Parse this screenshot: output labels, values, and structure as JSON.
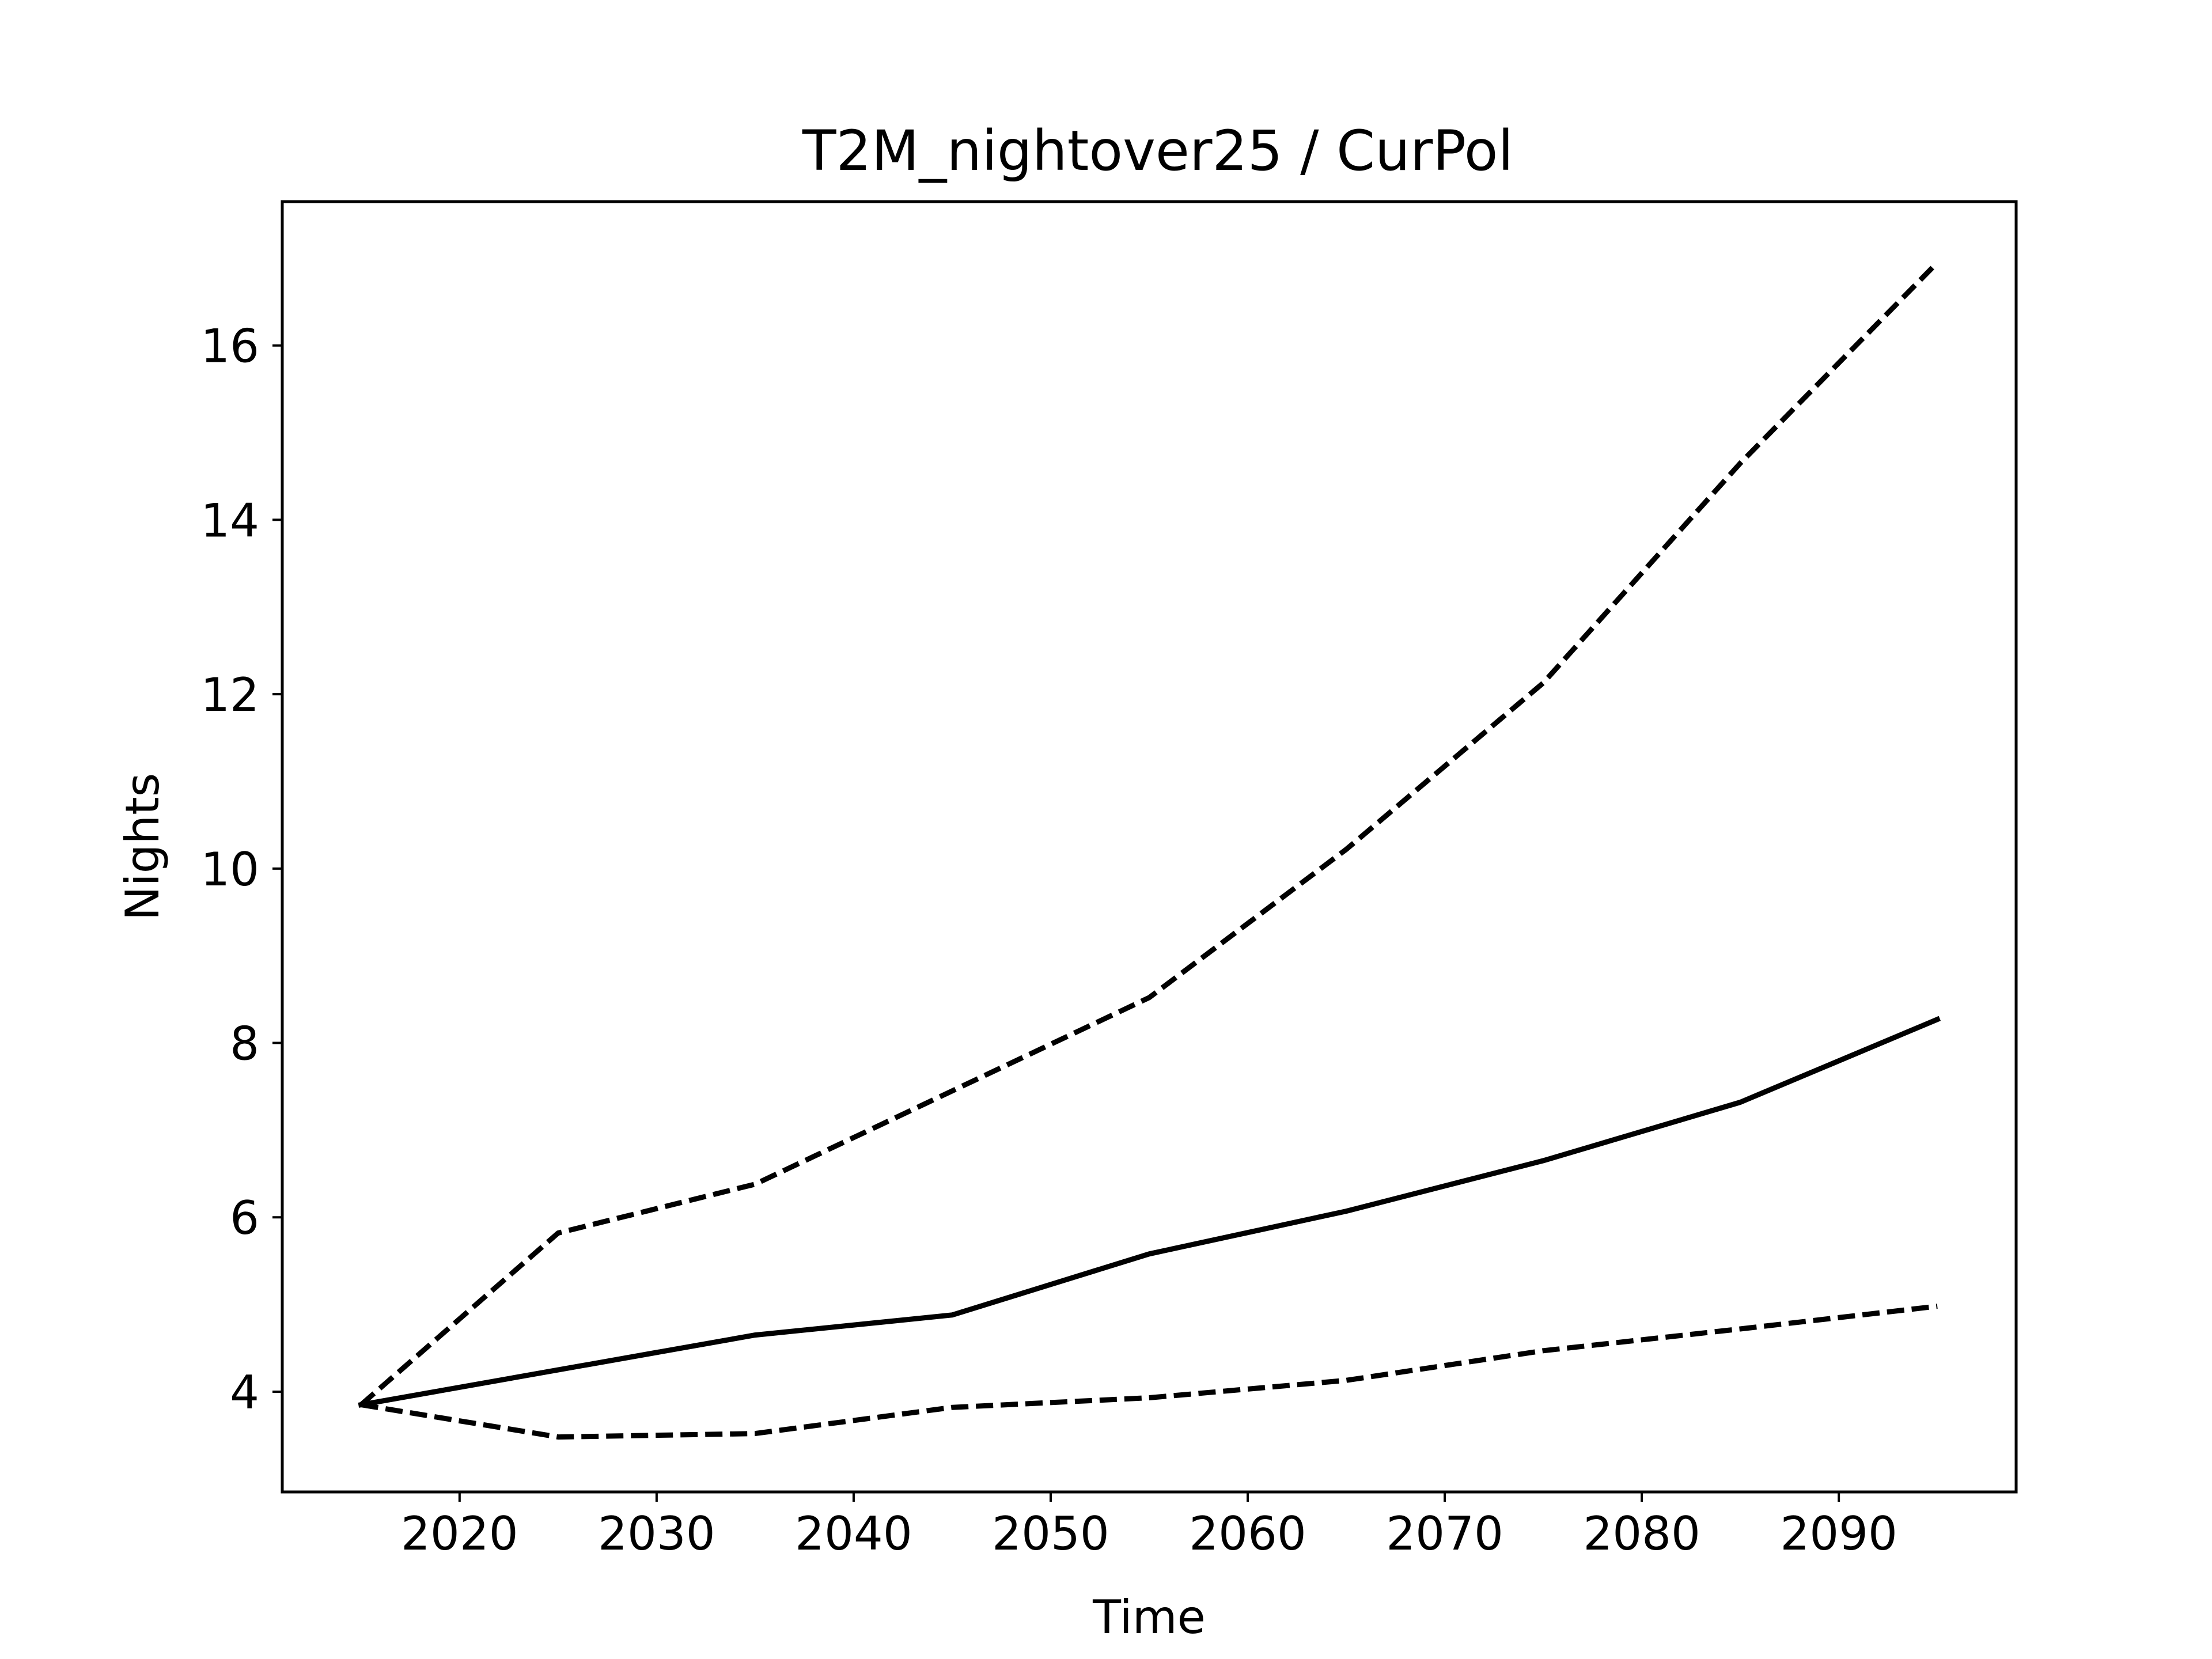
{
  "chart_data": {
    "type": "line",
    "title": "T2M_nightover25 / CurPol",
    "xlabel": "Time",
    "ylabel": "Nights",
    "xlim": [
      2011.0,
      2099.0
    ],
    "ylim": [
      2.85,
      17.65
    ],
    "x_ticks": [
      2020,
      2030,
      2040,
      2050,
      2060,
      2070,
      2080,
      2090
    ],
    "y_ticks": [
      4,
      6,
      8,
      10,
      12,
      14,
      16
    ],
    "grid": false,
    "legend": "none",
    "x": [
      2015,
      2025,
      2035,
      2045,
      2055,
      2065,
      2075,
      2085,
      2095
    ],
    "series": [
      {
        "style": "solid",
        "color": "#000000",
        "values": [
          3.85,
          4.25,
          4.65,
          4.88,
          5.58,
          6.07,
          6.65,
          7.32,
          8.27
        ]
      },
      {
        "style": "dashed",
        "color": "#000000",
        "values": [
          3.85,
          5.82,
          6.38,
          7.45,
          8.52,
          10.22,
          12.13,
          14.65,
          16.95
        ]
      },
      {
        "style": "dashed",
        "color": "#000000",
        "values": [
          3.85,
          3.48,
          3.52,
          3.82,
          3.93,
          4.13,
          4.47,
          4.72,
          4.98
        ]
      }
    ]
  }
}
